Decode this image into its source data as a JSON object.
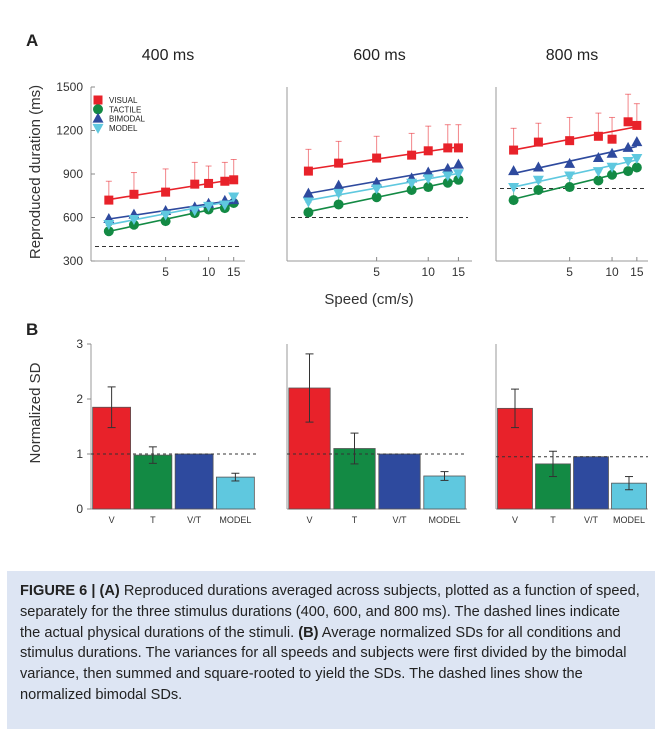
{
  "panel_labels": {
    "a": "A",
    "b": "B"
  },
  "panel_a": {
    "ylabel": "Reproduced duration (ms)",
    "xlabel": "Speed (cm/s)",
    "yticks": [
      "1500",
      "1200",
      "900",
      "600",
      "300"
    ],
    "xticks": [
      "5",
      "10",
      "15"
    ],
    "legend": [
      "VISUAL",
      "TACTILE",
      "BIMODAL",
      "MODEL"
    ]
  },
  "panel_b": {
    "ylabel": "Normalized SD",
    "yticks": [
      "3",
      "2",
      "1",
      "0"
    ],
    "categories": [
      "V",
      "T",
      "V/T",
      "MODEL"
    ]
  },
  "colors": {
    "visual": "#e8222a",
    "tactile": "#138a44",
    "bimodal": "#2e4a9e",
    "model": "#5fc8df",
    "caption_bg": "#dde5f3"
  },
  "chart_data": [
    {
      "type": "scatter",
      "title": "400 ms",
      "x": [
        2,
        3,
        5,
        8,
        10,
        13,
        15
      ],
      "xlim": [
        1.5,
        18
      ],
      "ylim": [
        300,
        1500
      ],
      "xscale": "log",
      "reference_line": 400,
      "series": [
        {
          "name": "VISUAL",
          "y": [
            720,
            760,
            775,
            830,
            835,
            850,
            860
          ],
          "err": [
            130,
            150,
            160,
            150,
            120,
            130,
            140
          ]
        },
        {
          "name": "TACTILE",
          "y": [
            505,
            550,
            575,
            630,
            655,
            665,
            700
          ],
          "err": [
            40,
            50,
            50,
            50,
            50,
            50,
            50
          ]
        },
        {
          "name": "BIMODAL",
          "y": [
            590,
            620,
            645,
            670,
            695,
            715,
            720
          ]
        },
        {
          "name": "MODEL",
          "y": [
            555,
            590,
            620,
            650,
            680,
            690,
            745
          ]
        }
      ]
    },
    {
      "type": "scatter",
      "title": "600 ms",
      "x": [
        2,
        3,
        5,
        8,
        10,
        13,
        15
      ],
      "xlim": [
        1.5,
        18
      ],
      "ylim": [
        300,
        1500
      ],
      "xscale": "log",
      "reference_line": 600,
      "series": [
        {
          "name": "VISUAL",
          "y": [
            920,
            975,
            1010,
            1030,
            1060,
            1080,
            1080
          ],
          "err": [
            150,
            150,
            150,
            150,
            170,
            160,
            160
          ]
        },
        {
          "name": "TACTILE",
          "y": [
            635,
            690,
            740,
            790,
            810,
            840,
            860
          ],
          "err": [
            70,
            60,
            60,
            60,
            60,
            60,
            60
          ]
        },
        {
          "name": "BIMODAL",
          "y": [
            765,
            820,
            840,
            870,
            910,
            935,
            965
          ]
        },
        {
          "name": "MODEL",
          "y": [
            710,
            770,
            800,
            840,
            870,
            890,
            905
          ]
        }
      ]
    },
    {
      "type": "scatter",
      "title": "800 ms",
      "x": [
        2,
        3,
        5,
        8,
        10,
        13,
        15
      ],
      "xlim": [
        1.5,
        18
      ],
      "ylim": [
        300,
        1500
      ],
      "xscale": "log",
      "reference_line": 800,
      "series": [
        {
          "name": "VISUAL",
          "y": [
            1065,
            1120,
            1130,
            1160,
            1140,
            1260,
            1235
          ],
          "err": [
            150,
            130,
            160,
            160,
            150,
            190,
            150
          ]
        },
        {
          "name": "TACTILE",
          "y": [
            720,
            790,
            810,
            855,
            895,
            920,
            945
          ],
          "err": [
            90,
            50,
            60,
            60,
            60,
            60,
            60
          ]
        },
        {
          "name": "BIMODAL",
          "y": [
            920,
            945,
            970,
            1010,
            1040,
            1080,
            1120
          ]
        },
        {
          "name": "MODEL",
          "y": [
            810,
            860,
            890,
            920,
            950,
            990,
            1010
          ]
        }
      ]
    },
    {
      "type": "bar",
      "categories": [
        "V",
        "T",
        "V/T",
        "MODEL"
      ],
      "ylim": [
        0,
        3
      ],
      "values": [
        1.85,
        0.98,
        1.0,
        0.58
      ],
      "err": [
        0.37,
        0.15,
        0.0,
        0.07
      ],
      "reference_line": 1.0
    },
    {
      "type": "bar",
      "categories": [
        "V",
        "T",
        "V/T",
        "MODEL"
      ],
      "ylim": [
        0,
        3
      ],
      "values": [
        2.2,
        1.1,
        1.0,
        0.6
      ],
      "err": [
        0.62,
        0.28,
        0.0,
        0.08
      ],
      "reference_line": 1.0
    },
    {
      "type": "bar",
      "categories": [
        "V",
        "T",
        "V/T",
        "MODEL"
      ],
      "ylim": [
        0,
        3
      ],
      "values": [
        1.83,
        0.82,
        0.95,
        0.47
      ],
      "err": [
        0.35,
        0.23,
        0.0,
        0.12
      ],
      "reference_line": 0.95
    }
  ],
  "caption": {
    "figure_label": "FIGURE 6 |",
    "a_label": "(A)",
    "a_text": " Reproduced durations averaged across subjects, plotted as a function of speed, separately for the three stimulus durations (400, 600, and 800 ms). The dashed lines indicate the actual physical durations of the stimuli. ",
    "b_label": "(B)",
    "b_text": " Average normalized SDs for all conditions and stimulus durations. The variances for all speeds and subjects were first divided by the bimodal variance, then summed and square-rooted to yield the SDs. The dashed lines show the normalized bimodal SDs."
  }
}
